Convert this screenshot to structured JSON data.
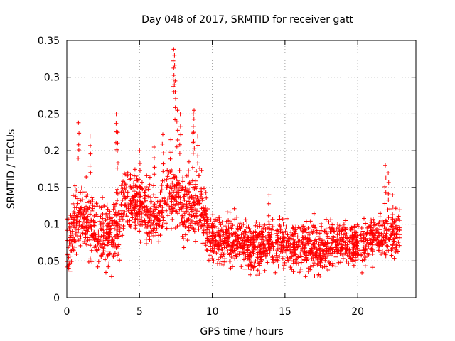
{
  "chart_data": {
    "type": "scatter",
    "title": "Day 048 of 2017, SRMTID for receiver gatt",
    "xlabel": "GPS time / hours",
    "ylabel": "SRMTID / TECUs",
    "xlim": [
      0,
      24
    ],
    "ylim": [
      0,
      0.35
    ],
    "xticks": [
      0,
      5,
      10,
      15,
      20
    ],
    "xtick_labels": [
      "0",
      "5",
      "10",
      "15",
      "20"
    ],
    "yticks": [
      0,
      0.05,
      0.1,
      0.15,
      0.2,
      0.25,
      0.3,
      0.35
    ],
    "ytick_labels": [
      "0",
      "0.05",
      "0.1",
      "0.15",
      "0.2",
      "0.25",
      "0.3",
      "0.35"
    ],
    "grid": true,
    "marker": "+",
    "color": "#ff0000",
    "data_range": [
      0,
      22.9
    ],
    "profile": [
      [
        0,
        0.07
      ],
      [
        0.5,
        0.1
      ],
      [
        1,
        0.11
      ],
      [
        1.5,
        0.1
      ],
      [
        2,
        0.095
      ],
      [
        2.5,
        0.085
      ],
      [
        3,
        0.08
      ],
      [
        3.5,
        0.1
      ],
      [
        4,
        0.135
      ],
      [
        4.5,
        0.13
      ],
      [
        5,
        0.13
      ],
      [
        5.5,
        0.115
      ],
      [
        6,
        0.11
      ],
      [
        6.5,
        0.12
      ],
      [
        7,
        0.14
      ],
      [
        7.5,
        0.14
      ],
      [
        8,
        0.12
      ],
      [
        8.5,
        0.125
      ],
      [
        9,
        0.13
      ],
      [
        9.5,
        0.1
      ],
      [
        10,
        0.085
      ],
      [
        11,
        0.08
      ],
      [
        12,
        0.075
      ],
      [
        13,
        0.07
      ],
      [
        14,
        0.07
      ],
      [
        15,
        0.075
      ],
      [
        16,
        0.07
      ],
      [
        17,
        0.065
      ],
      [
        18,
        0.07
      ],
      [
        19,
        0.075
      ],
      [
        20,
        0.07
      ],
      [
        21,
        0.08
      ],
      [
        22,
        0.085
      ],
      [
        22.9,
        0.085
      ]
    ],
    "spikes": [
      [
        0.8,
        0.238
      ],
      [
        1.6,
        0.22
      ],
      [
        3.4,
        0.25
      ],
      [
        3.5,
        0.225
      ],
      [
        5.0,
        0.2
      ],
      [
        6.0,
        0.205
      ],
      [
        6.6,
        0.222
      ],
      [
        7.15,
        0.215
      ],
      [
        7.35,
        0.338
      ],
      [
        7.4,
        0.33
      ],
      [
        7.45,
        0.295
      ],
      [
        7.6,
        0.255
      ],
      [
        7.8,
        0.25
      ],
      [
        8.4,
        0.185
      ],
      [
        8.7,
        0.25
      ],
      [
        8.75,
        0.255
      ],
      [
        9.0,
        0.22
      ],
      [
        13.9,
        0.14
      ],
      [
        21.9,
        0.18
      ],
      [
        22.1,
        0.17
      ],
      [
        22.4,
        0.14
      ]
    ]
  }
}
